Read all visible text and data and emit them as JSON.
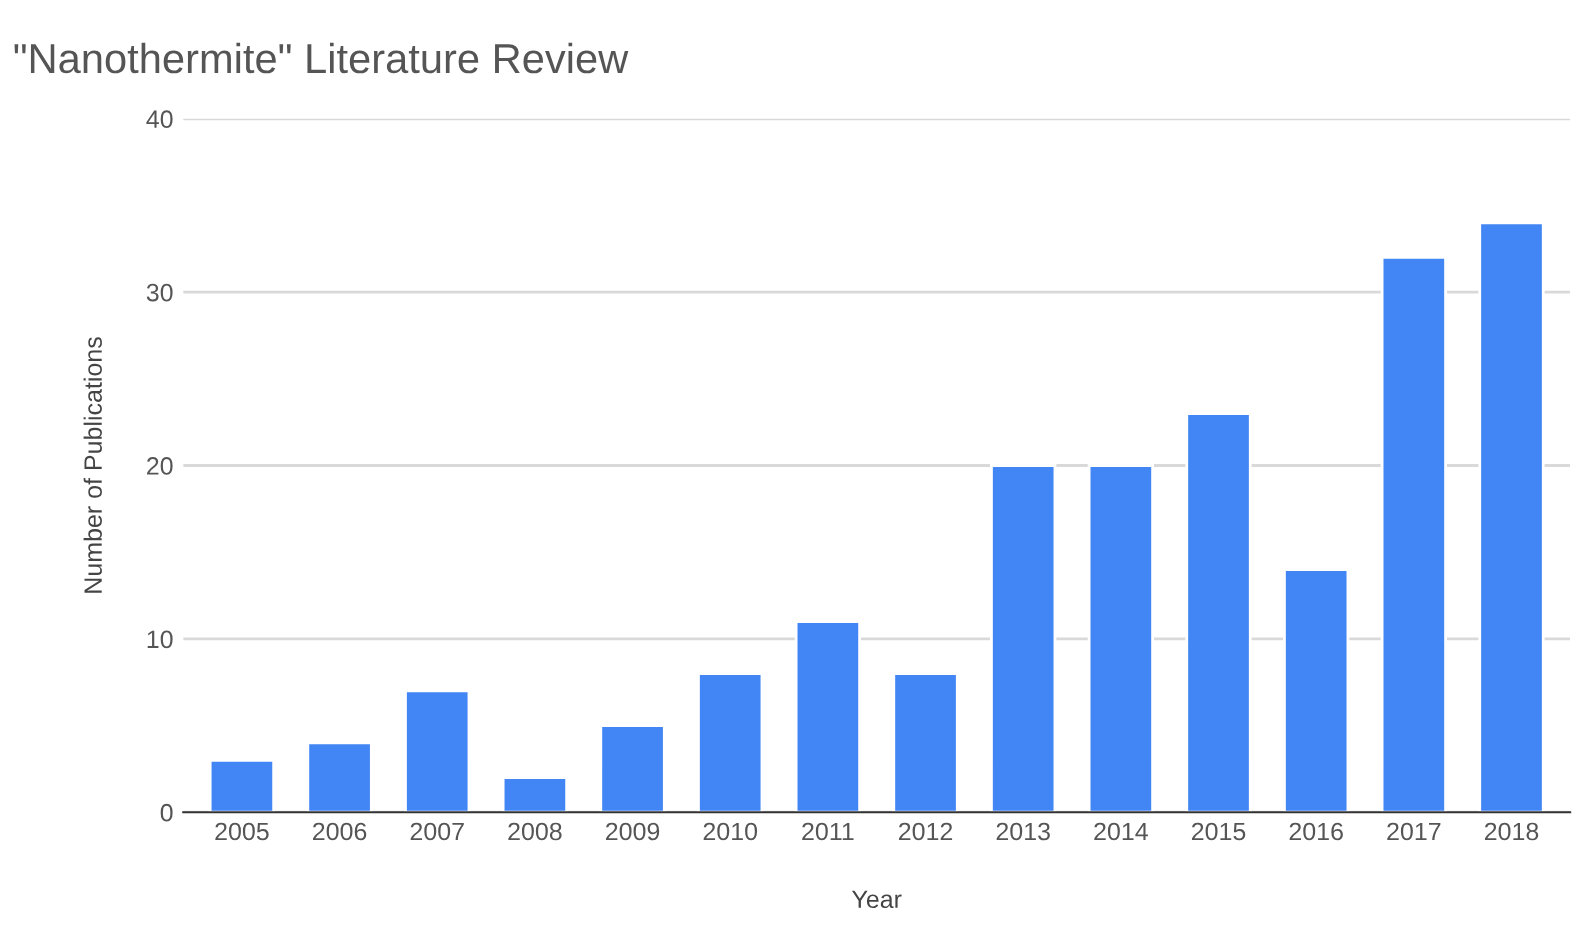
{
  "chart_data": {
    "type": "bar",
    "title": "\"Nanothermite\" Literature Review",
    "xlabel": "Year",
    "ylabel": "Number of Publications",
    "categories": [
      "2005",
      "2006",
      "2007",
      "2008",
      "2009",
      "2010",
      "2011",
      "2012",
      "2013",
      "2014",
      "2015",
      "2016",
      "2017",
      "2018"
    ],
    "values": [
      3,
      4,
      7,
      2,
      5,
      8,
      11,
      8,
      20,
      20,
      23,
      14,
      32,
      34
    ],
    "color": "#4285f4",
    "ylim": [
      0,
      40
    ],
    "yticks": [
      0,
      10,
      20,
      30,
      40
    ],
    "grid": "y",
    "legend": false
  }
}
